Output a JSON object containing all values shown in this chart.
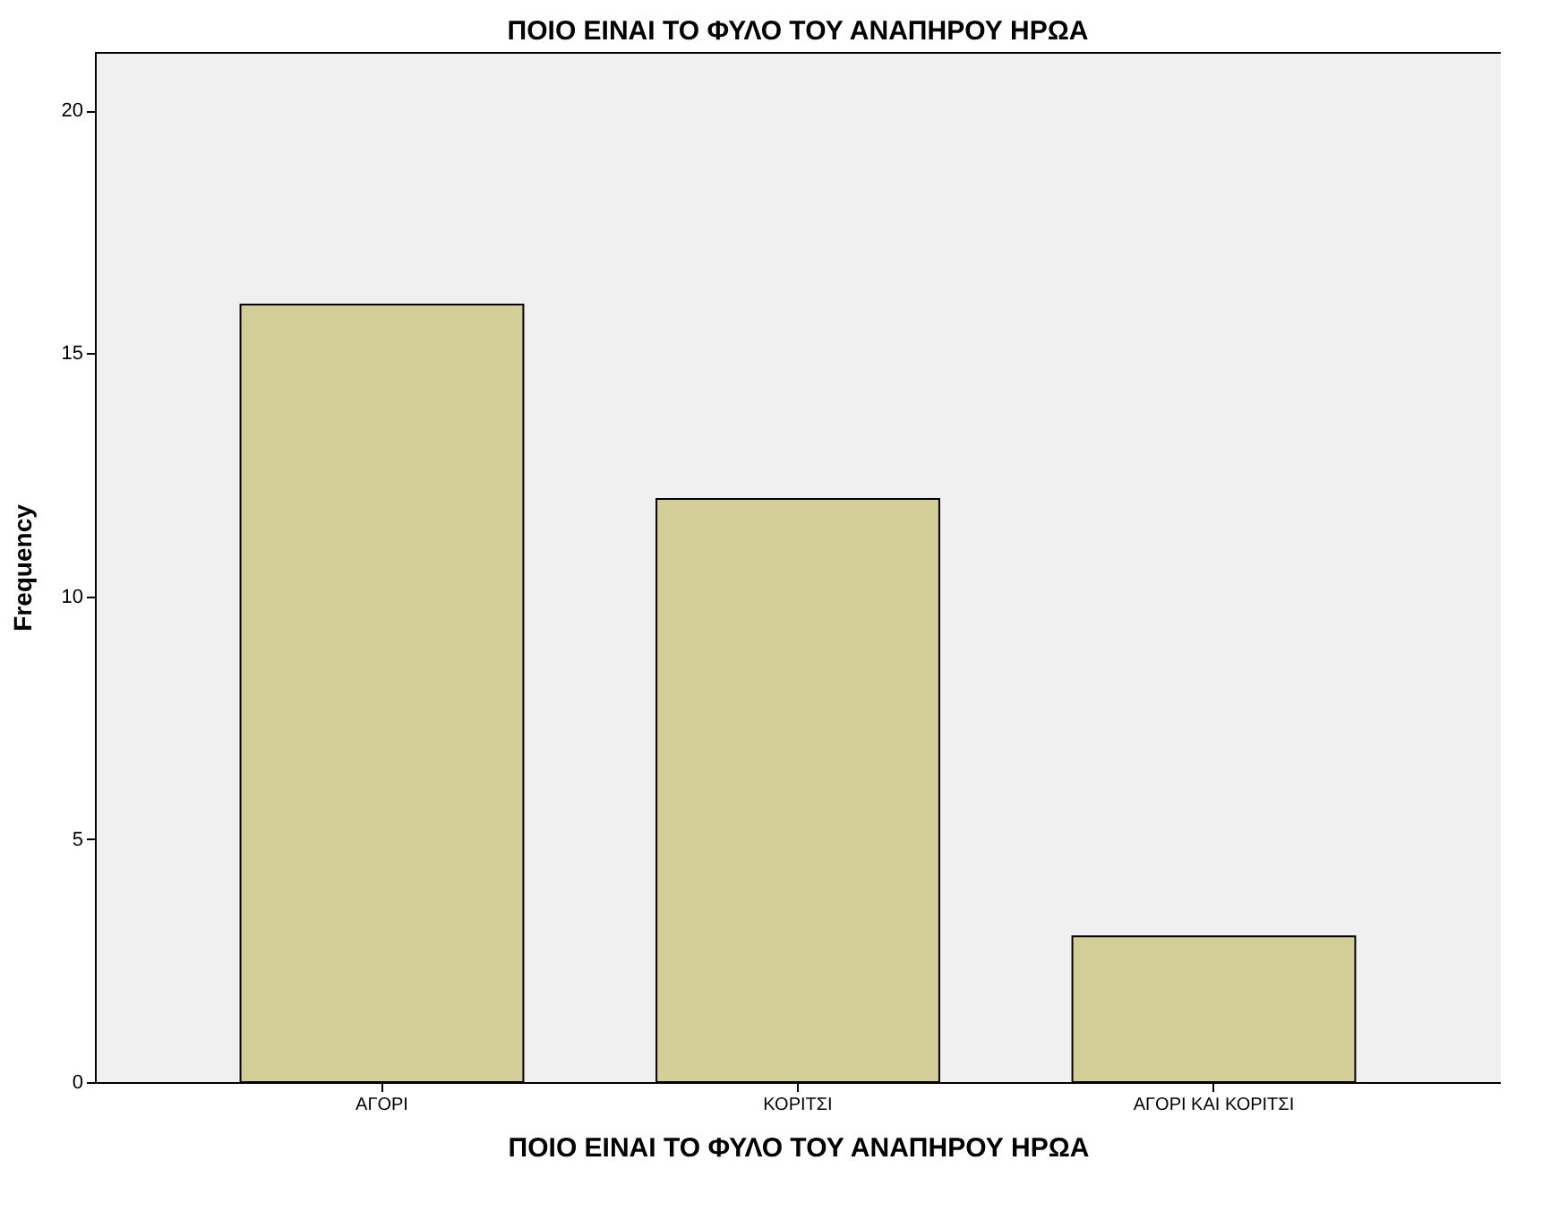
{
  "chart_data": {
    "type": "bar",
    "title": "ΠΟΙΟ ΕΙΝΑΙ ΤΟ ΦΥΛΟ ΤΟΥ ΑΝΑΠΗΡΟΥ ΗΡΩΑ",
    "xlabel": "ΠΟΙΟ ΕΙΝΑΙ ΤΟ ΦΥΛΟ ΤΟΥ ΑΝΑΠΗΡΟΥ ΗΡΩΑ",
    "ylabel": "Frequency",
    "categories": [
      "ΑΓΟΡΙ",
      "ΚΟΡΙΤΣΙ",
      "ΑΓΟΡΙ ΚΑΙ ΚΟΡΙΤΣΙ"
    ],
    "values": [
      16,
      12,
      3
    ],
    "color": "#d3ce97",
    "ylim": [
      0,
      21.2
    ],
    "yticks": [
      0,
      5,
      10,
      15,
      20
    ],
    "grid": false
  }
}
